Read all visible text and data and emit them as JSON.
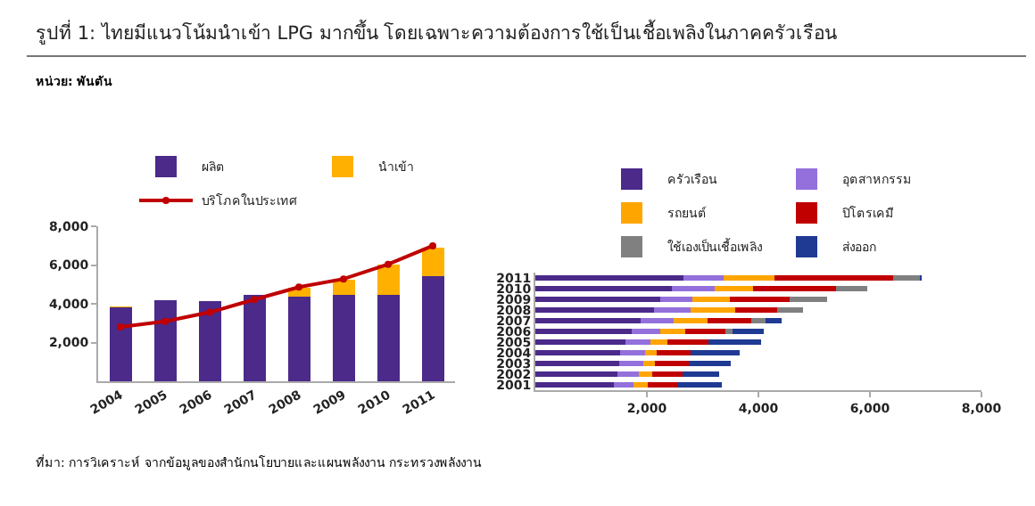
{
  "chart_data": [
    {
      "type": "bar",
      "title": "รูปที่ 1: ไทยมีแนวโน้มนำเข้า LPG มากขึ้น โดยเฉพาะความต้องการใช้เป็นเชื้อเพลิงในภาคครัวเรือน",
      "subtitle": "หน่วย: พันตัน",
      "annotations": [
        "ที่มา:   การวิเคราะห์ จากข้อมูลของสำนักนโยบายและแผนพลังงาน กระทรวงพลังงาน"
      ],
      "categories": [
        "2004",
        "2005",
        "2006",
        "2007",
        "2008",
        "2009",
        "2010",
        "2011"
      ],
      "stacked": true,
      "series": [
        {
          "name": "ผลิต",
          "color": "#4b2a8a",
          "values": [
            3830,
            4200,
            4130,
            4450,
            4350,
            4480,
            4450,
            5420
          ]
        },
        {
          "name": "นำเข้า",
          "color": "#ffb000",
          "values": [
            50,
            0,
            0,
            0,
            490,
            770,
            1590,
            1480
          ]
        },
        {
          "name": "บริโภคในประเทศ",
          "type": "line",
          "color": "#c00000",
          "values": [
            2800,
            3090,
            3560,
            4220,
            4860,
            5280,
            6040,
            6990
          ]
        }
      ],
      "marker": "circle",
      "ylim": [
        0,
        8000
      ],
      "yticks": [
        {
          "value": 2000,
          "label": "2,000"
        },
        {
          "value": 4000,
          "label": "4,000"
        },
        {
          "value": 6000,
          "label": "6,000"
        },
        {
          "value": 8000,
          "label": "8,000"
        }
      ],
      "legend": "top",
      "grid": false
    },
    {
      "type": "bar",
      "orientation": "horizontal",
      "stacked": true,
      "categories": [
        "2011",
        "2010",
        "2009",
        "2008",
        "2007",
        "2006",
        "2005",
        "2004",
        "2003",
        "2002",
        "2001"
      ],
      "series": [
        {
          "name": "ครัวเรือน",
          "color": "#4b2a8a",
          "values": [
            2660,
            2450,
            2240,
            2120,
            1880,
            1730,
            1610,
            1520,
            1500,
            1470,
            1410
          ]
        },
        {
          "name": "อุตสาหกรรม",
          "color": "#9370db",
          "values": [
            720,
            760,
            570,
            670,
            600,
            510,
            450,
            440,
            440,
            380,
            350
          ]
        },
        {
          "name": "รถยนต์",
          "color": "#ffa500",
          "values": [
            910,
            700,
            680,
            790,
            600,
            450,
            310,
            220,
            210,
            250,
            260
          ]
        },
        {
          "name": "ปิโตรเคมี",
          "color": "#c00000",
          "values": [
            2120,
            1480,
            1070,
            760,
            790,
            710,
            730,
            600,
            600,
            540,
            530
          ]
        },
        {
          "name": "ใช้เองเป็นเชื้อเพลิง",
          "color": "#808080",
          "values": [
            480,
            560,
            670,
            460,
            260,
            130,
            0,
            0,
            0,
            0,
            0
          ]
        },
        {
          "name": "ส่งออก",
          "color": "#1f3a93",
          "values": [
            40,
            null,
            null,
            null,
            280,
            560,
            950,
            880,
            750,
            660,
            790
          ]
        }
      ],
      "xlim": [
        0,
        8000
      ],
      "xticks": [
        {
          "value": 2000,
          "label": "2,000"
        },
        {
          "value": 4000,
          "label": "4,000"
        },
        {
          "value": 6000,
          "label": "6,000"
        },
        {
          "value": 8000,
          "label": "8,000"
        }
      ],
      "legend": "top",
      "grid": false
    }
  ]
}
